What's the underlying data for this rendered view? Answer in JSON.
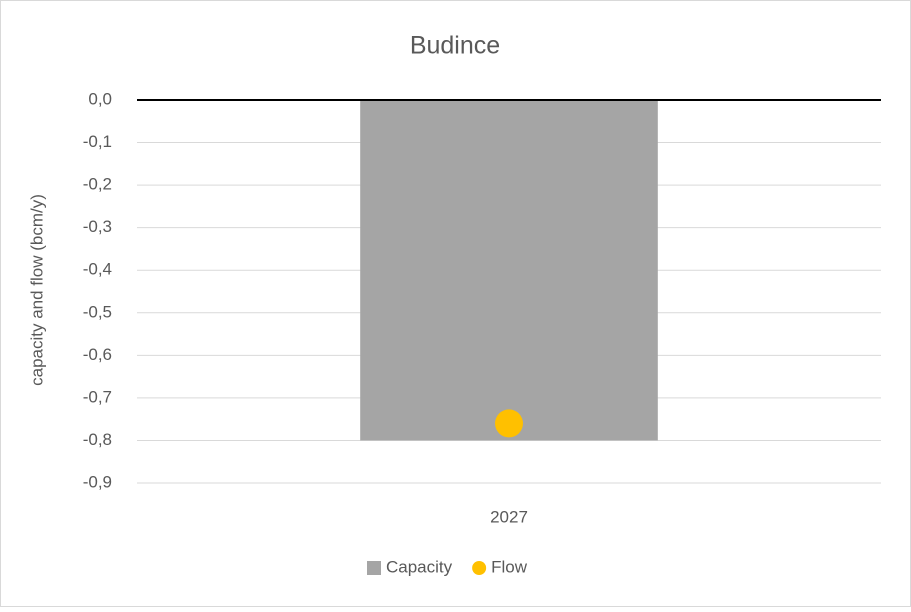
{
  "chart_data": {
    "type": "bar",
    "title": "Budince",
    "y_label": "capacity and flow (bcm/y)",
    "categories": [
      "2027"
    ],
    "series": [
      {
        "name": "Capacity",
        "type": "bar",
        "color": "#a5a5a5",
        "values": [
          -0.8
        ]
      },
      {
        "name": "Flow",
        "type": "point",
        "color": "#ffc000",
        "values": [
          -0.76
        ]
      }
    ],
    "ylim": [
      -0.9,
      0
    ],
    "yticks": [
      {
        "value": 0,
        "label": "0,0"
      },
      {
        "value": -0.1,
        "label": "-0,1"
      },
      {
        "value": -0.2,
        "label": "-0,2"
      },
      {
        "value": -0.3,
        "label": "-0,3"
      },
      {
        "value": -0.4,
        "label": "-0,4"
      },
      {
        "value": -0.5,
        "label": "-0,5"
      },
      {
        "value": -0.6,
        "label": "-0,6"
      },
      {
        "value": -0.7,
        "label": "-0,7"
      },
      {
        "value": -0.8,
        "label": "-0,8"
      },
      {
        "value": -0.9,
        "label": "-0,9"
      }
    ],
    "grid": true,
    "legend": "bottom"
  }
}
